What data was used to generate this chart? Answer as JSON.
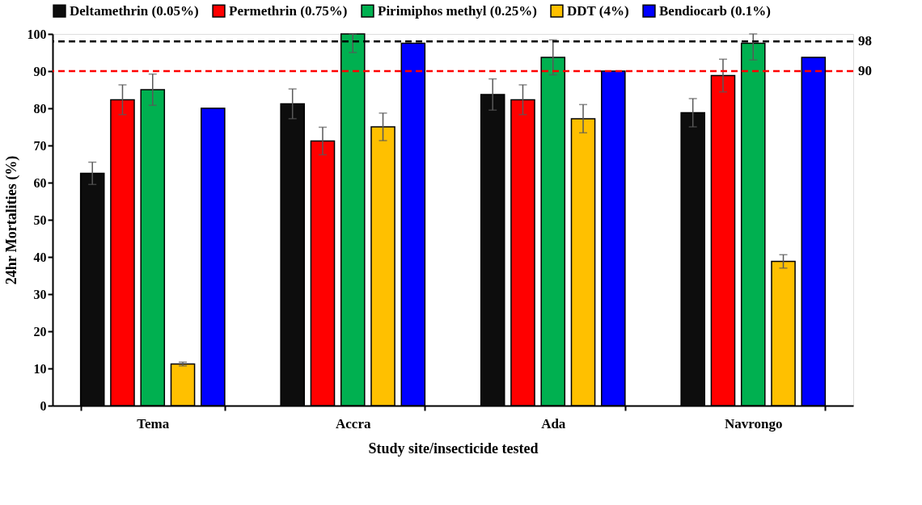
{
  "chart_data": {
    "type": "bar",
    "xlabel": "Study site/insecticide tested",
    "ylabel": "24hr Mortalities (%)",
    "categories": [
      "Tema",
      "Accra",
      "Ada",
      "Navrongo"
    ],
    "series": [
      {
        "name": "Deltamethrin (0.05%)",
        "color": "#0d0d0d",
        "values": [
          62.5,
          81.2,
          83.7,
          78.8
        ],
        "errors": [
          3,
          4,
          4.2,
          3.8
        ]
      },
      {
        "name": "Permethrin (0.75%)",
        "color": "#ff0000",
        "values": [
          82.3,
          71.2,
          82.3,
          88.8
        ],
        "errors": [
          4,
          3.7,
          4,
          4.4
        ]
      },
      {
        "name": "Pirimiphos methyl (0.25%)",
        "color": "#00b050",
        "values": [
          85,
          100,
          93.7,
          97.5
        ],
        "errors": [
          4.2,
          [
            95,
            100
          ],
          4.7,
          [
            93,
            100
          ]
        ]
      },
      {
        "name": "DDT (4%)",
        "color": "#ffc000",
        "values": [
          11.2,
          75,
          77.2,
          38.8
        ],
        "errors": [
          0.5,
          3.7,
          3.8,
          1.8
        ]
      },
      {
        "name": "Bendiocarb (0.1%)",
        "color": "#0000ff",
        "values": [
          80,
          97.5,
          90,
          93.7
        ]
      }
    ],
    "ylim": [
      0,
      100
    ],
    "yticks": [
      0,
      10,
      20,
      30,
      40,
      50,
      60,
      70,
      80,
      90,
      100
    ],
    "ref_lines": [
      {
        "axis": "y",
        "value": 98,
        "label": "98",
        "color": "#000000",
        "line_style": "dashed"
      },
      {
        "axis": "y",
        "value": 90,
        "label": "90",
        "color": "#ff0000",
        "line_style": "dashed"
      }
    ],
    "legend": "top",
    "grid": false
  }
}
